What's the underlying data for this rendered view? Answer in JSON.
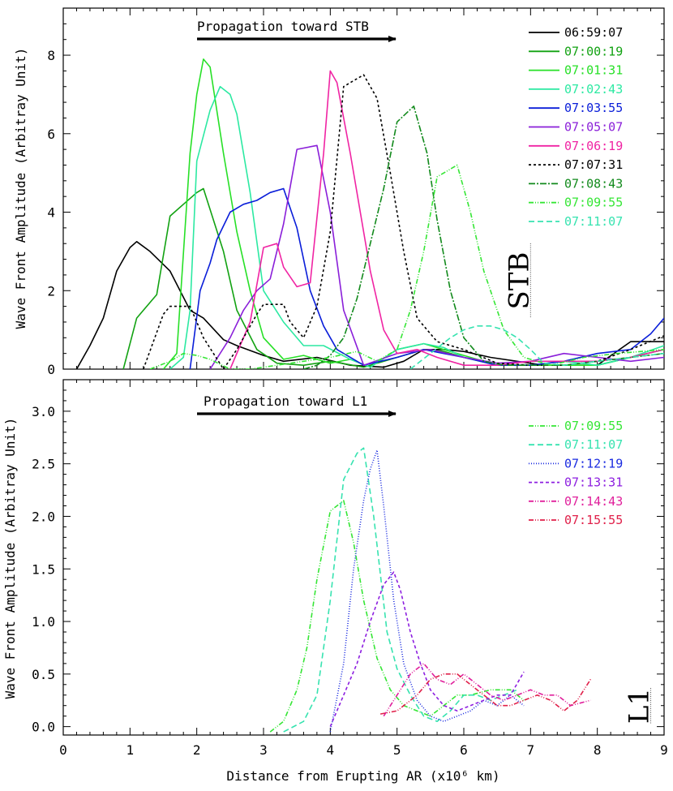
{
  "chart_data": [
    {
      "type": "line",
      "annotation": "Propagation toward STB",
      "marker_label": "STB",
      "marker_x": 7.0,
      "ylabel": "Wave Front Amplitude (Arbitray Unit)",
      "xlim": [
        0,
        9
      ],
      "ylim": [
        0,
        9.2
      ],
      "yticks": [
        0,
        2,
        4,
        6,
        8
      ],
      "yticklabels": [
        "0",
        "2",
        "4",
        "6",
        "8"
      ],
      "legend_position": "top-right",
      "series": [
        {
          "name": "06:59:07",
          "color": "#000000",
          "dash": "solid",
          "x": [
            0.2,
            0.4,
            0.6,
            0.8,
            1.0,
            1.1,
            1.3,
            1.6,
            1.9,
            2.1,
            2.4,
            2.6,
            3.0,
            3.3,
            3.8,
            4.3,
            4.8,
            5.1,
            5.4,
            5.7,
            6.0,
            6.4,
            7.2,
            8.0,
            8.5,
            9.0
          ],
          "y": [
            0.0,
            0.6,
            1.3,
            2.5,
            3.1,
            3.25,
            3.0,
            2.5,
            1.5,
            1.3,
            0.75,
            0.6,
            0.35,
            0.2,
            0.3,
            0.1,
            0.05,
            0.2,
            0.5,
            0.5,
            0.45,
            0.3,
            0.1,
            0.1,
            0.7,
            0.7
          ]
        },
        {
          "name": "07:00:19",
          "color": "#12a212",
          "dash": "solid",
          "x": [
            0.9,
            1.1,
            1.4,
            1.6,
            1.8,
            2.0,
            2.1,
            2.4,
            2.6,
            2.9,
            3.2,
            3.6,
            4.0,
            4.5,
            5.0,
            5.4,
            5.7,
            6.0,
            6.5,
            7.0,
            7.5,
            8.0,
            8.5,
            9.0
          ],
          "y": [
            0.0,
            1.3,
            1.9,
            3.9,
            4.2,
            4.5,
            4.6,
            3.0,
            1.5,
            0.5,
            0.15,
            0.1,
            0.2,
            0.05,
            0.3,
            0.5,
            0.45,
            0.3,
            0.1,
            0.1,
            0.1,
            0.1,
            0.3,
            0.5
          ]
        },
        {
          "name": "07:01:31",
          "color": "#27e027",
          "dash": "solid",
          "x": [
            1.5,
            1.7,
            1.9,
            2.0,
            2.1,
            2.2,
            2.4,
            2.6,
            2.8,
            3.0,
            3.3,
            3.6,
            4.0,
            4.3,
            4.6,
            5.0,
            5.4,
            5.7,
            6.0,
            6.5,
            7.0,
            7.5,
            8.0,
            8.5,
            9.0
          ],
          "y": [
            0.0,
            0.4,
            5.5,
            7.0,
            7.9,
            7.7,
            5.5,
            3.5,
            2.0,
            0.8,
            0.25,
            0.35,
            0.15,
            0.25,
            0.05,
            0.5,
            0.65,
            0.5,
            0.35,
            0.1,
            0.1,
            0.1,
            0.1,
            0.3,
            0.5
          ]
        },
        {
          "name": "07:02:43",
          "color": "#2ce9a2",
          "dash": "solid",
          "x": [
            1.6,
            1.8,
            1.9,
            2.0,
            2.2,
            2.35,
            2.5,
            2.6,
            2.8,
            3.0,
            3.3,
            3.6,
            3.9,
            4.3,
            4.6,
            5.0,
            5.4,
            5.7,
            6.0,
            6.5,
            7.0,
            7.5,
            8.0,
            8.5,
            9.0
          ],
          "y": [
            0.0,
            0.3,
            1.5,
            5.3,
            6.6,
            7.2,
            7.0,
            6.5,
            4.5,
            2.0,
            1.2,
            0.6,
            0.6,
            0.25,
            0.05,
            0.5,
            0.65,
            0.55,
            0.3,
            0.1,
            0.1,
            0.2,
            0.1,
            0.3,
            0.6
          ]
        },
        {
          "name": "07:03:55",
          "color": "#0a1ed9",
          "dash": "solid",
          "x": [
            1.9,
            2.05,
            2.2,
            2.3,
            2.5,
            2.7,
            2.9,
            3.1,
            3.3,
            3.5,
            3.7,
            3.9,
            4.1,
            4.5,
            5.0,
            5.4,
            5.7,
            6.0,
            6.5,
            7.0,
            7.5,
            8.0,
            8.5,
            8.8,
            9.0
          ],
          "y": [
            0.0,
            2.0,
            2.7,
            3.3,
            4.0,
            4.2,
            4.3,
            4.5,
            4.6,
            3.6,
            2.0,
            1.1,
            0.5,
            0.1,
            0.3,
            0.5,
            0.4,
            0.3,
            0.1,
            0.1,
            0.2,
            0.4,
            0.5,
            0.9,
            1.3
          ]
        },
        {
          "name": "07:05:07",
          "color": "#8a1fd9",
          "dash": "solid",
          "x": [
            2.2,
            2.5,
            2.7,
            2.9,
            3.1,
            3.3,
            3.5,
            3.8,
            4.0,
            4.2,
            4.5,
            5.0,
            5.5,
            6.0,
            6.5,
            7.0,
            7.5,
            8.0,
            8.5,
            9.0
          ],
          "y": [
            0.0,
            0.8,
            1.5,
            2.0,
            2.3,
            3.7,
            5.6,
            5.7,
            4.0,
            1.5,
            0.1,
            0.4,
            0.5,
            0.3,
            0.15,
            0.2,
            0.4,
            0.3,
            0.2,
            0.3
          ]
        },
        {
          "name": "07:06:19",
          "color": "#f024a3",
          "dash": "solid",
          "x": [
            2.5,
            2.8,
            3.0,
            3.2,
            3.3,
            3.5,
            3.7,
            3.9,
            4.0,
            4.1,
            4.3,
            4.6,
            4.8,
            5.0,
            5.3,
            5.6,
            6.0,
            6.5,
            7.0,
            7.5,
            8.0,
            8.5,
            9.0
          ],
          "y": [
            0.0,
            1.2,
            3.1,
            3.2,
            2.6,
            2.1,
            2.2,
            5.5,
            7.6,
            7.3,
            5.5,
            2.5,
            1.0,
            0.4,
            0.5,
            0.3,
            0.1,
            0.1,
            0.2,
            0.2,
            0.2,
            0.3,
            0.5
          ]
        },
        {
          "name": "07:07:31",
          "color": "#000000",
          "dash": "3,3",
          "x": [
            1.2,
            1.5,
            1.6,
            1.9,
            2.1,
            2.4,
            2.6,
            2.9,
            3.0,
            3.3,
            3.4,
            3.6,
            3.8,
            4.0,
            4.2,
            4.5,
            4.7,
            4.9,
            5.1,
            5.3,
            5.6,
            6.0,
            6.5,
            7.0,
            7.5,
            8.0,
            8.5,
            9.0
          ],
          "y": [
            0.0,
            1.4,
            1.6,
            1.6,
            0.8,
            0.0,
            0.5,
            1.4,
            1.65,
            1.65,
            1.2,
            0.8,
            1.6,
            3.5,
            7.2,
            7.5,
            6.9,
            5.0,
            3.0,
            1.3,
            0.7,
            0.5,
            0.15,
            0.1,
            0.1,
            0.2,
            0.5,
            0.85
          ]
        },
        {
          "name": "07:08:43",
          "color": "#128a1c",
          "dash": "8,2,2,2",
          "x": [
            3.6,
            3.8,
            4.0,
            4.2,
            4.4,
            4.6,
            4.8,
            5.0,
            5.25,
            5.45,
            5.6,
            5.8,
            6.0,
            6.3,
            6.6,
            7.0,
            7.5,
            8.0,
            8.5,
            9.0
          ],
          "y": [
            0.0,
            0.1,
            0.35,
            0.8,
            1.8,
            3.2,
            4.6,
            6.3,
            6.7,
            5.5,
            3.8,
            2.0,
            0.8,
            0.2,
            0.1,
            0.1,
            0.1,
            0.2,
            0.3,
            0.4
          ]
        },
        {
          "name": "07:09:55",
          "color": "#35e635",
          "dash": "6,2,1,2,1,2",
          "x": [
            1.3,
            1.6,
            1.8,
            2.0,
            2.2,
            2.5,
            2.8,
            3.2,
            3.6,
            4.0,
            4.4,
            4.7,
            5.0,
            5.2,
            5.4,
            5.6,
            5.9,
            6.1,
            6.3,
            6.6,
            6.9,
            7.3,
            7.8,
            8.3,
            9.0
          ],
          "y": [
            0.0,
            0.2,
            0.4,
            0.35,
            0.25,
            0.0,
            0.0,
            0.1,
            0.2,
            0.3,
            0.45,
            0.2,
            0.5,
            1.5,
            3.0,
            4.9,
            5.2,
            4.0,
            2.5,
            1.0,
            0.3,
            0.1,
            0.3,
            0.4,
            0.5
          ]
        },
        {
          "name": "07:11:07",
          "color": "#37e3b0",
          "dash": "7,4",
          "x": [
            5.2,
            5.5,
            5.8,
            6.0,
            6.2,
            6.4,
            6.6,
            6.8,
            7.0,
            7.2,
            7.5,
            8.0,
            8.5,
            9.0
          ],
          "y": [
            0.0,
            0.4,
            0.8,
            1.0,
            1.1,
            1.1,
            1.0,
            0.8,
            0.5,
            0.15,
            0.1,
            0.2,
            0.3,
            0.4
          ]
        }
      ]
    },
    {
      "type": "line",
      "annotation": "Propagation toward L1",
      "marker_label": "L1",
      "marker_x": 8.8,
      "xlabel": "Distance from Erupting AR (x10⁶ km)",
      "ylabel": "Wave Front Amplitude (Arbitray Unit)",
      "xlim": [
        0,
        9
      ],
      "xticks": [
        0,
        1,
        2,
        3,
        4,
        5,
        6,
        7,
        8,
        9
      ],
      "xticklabels": [
        "0",
        "1",
        "2",
        "3",
        "4",
        "5",
        "6",
        "7",
        "8",
        "9"
      ],
      "ylim": [
        -0.08,
        3.3
      ],
      "yticks": [
        0.0,
        0.5,
        1.0,
        1.5,
        2.0,
        2.5,
        3.0
      ],
      "yticklabels": [
        "0.0",
        "0.5",
        "1.0",
        "1.5",
        "2.0",
        "2.5",
        "3.0"
      ],
      "legend_position": "top-right",
      "series": [
        {
          "name": "07:09:55",
          "color": "#35e635",
          "dash": "6,2,1,2,1,2",
          "x": [
            3.1,
            3.3,
            3.5,
            3.65,
            3.8,
            4.0,
            4.2,
            4.35,
            4.5,
            4.7,
            4.9,
            5.1,
            5.3,
            5.5,
            5.7,
            5.9,
            6.1,
            6.4,
            6.7,
            6.9
          ],
          "y": [
            -0.05,
            0.05,
            0.35,
            0.75,
            1.4,
            2.05,
            2.15,
            1.75,
            1.2,
            0.65,
            0.35,
            0.2,
            0.15,
            0.1,
            0.2,
            0.3,
            0.3,
            0.35,
            0.35,
            0.25
          ]
        },
        {
          "name": "07:11:07",
          "color": "#37e3b0",
          "dash": "7,4",
          "x": [
            3.3,
            3.6,
            3.8,
            4.0,
            4.2,
            4.4,
            4.5,
            4.65,
            4.85,
            5.0,
            5.2,
            5.4,
            5.6,
            5.8,
            6.0,
            6.2,
            6.4,
            6.6,
            6.8
          ],
          "y": [
            -0.05,
            0.05,
            0.3,
            1.2,
            2.35,
            2.6,
            2.65,
            2.0,
            0.9,
            0.55,
            0.3,
            0.1,
            0.05,
            0.15,
            0.3,
            0.3,
            0.25,
            0.3,
            0.35
          ]
        },
        {
          "name": "07:12:19",
          "color": "#1a2be0",
          "dash": "1,2",
          "x": [
            4.0,
            4.2,
            4.35,
            4.5,
            4.6,
            4.7,
            4.8,
            4.95,
            5.1,
            5.3,
            5.5,
            5.7,
            5.9,
            6.1,
            6.3,
            6.5,
            6.7,
            6.9
          ],
          "y": [
            -0.05,
            0.6,
            1.5,
            2.15,
            2.45,
            2.63,
            2.1,
            1.2,
            0.6,
            0.25,
            0.1,
            0.05,
            0.1,
            0.15,
            0.25,
            0.2,
            0.3,
            0.2
          ]
        },
        {
          "name": "07:13:31",
          "color": "#8d1fe0",
          "dash": "4,3",
          "x": [
            4.0,
            4.2,
            4.4,
            4.6,
            4.8,
            4.95,
            5.05,
            5.2,
            5.35,
            5.5,
            5.7,
            5.9,
            6.1,
            6.3,
            6.5,
            6.7,
            6.9
          ],
          "y": [
            0.0,
            0.3,
            0.6,
            1.0,
            1.35,
            1.47,
            1.3,
            0.9,
            0.6,
            0.35,
            0.2,
            0.15,
            0.2,
            0.25,
            0.3,
            0.3,
            0.52
          ]
        },
        {
          "name": "07:14:43",
          "color": "#e0209c",
          "dash": "6,2,1,2,1,2",
          "x": [
            4.8,
            5.0,
            5.2,
            5.4,
            5.6,
            5.8,
            6.0,
            6.2,
            6.4,
            6.6,
            6.8,
            7.0,
            7.2,
            7.4,
            7.6,
            7.9
          ],
          "y": [
            0.1,
            0.3,
            0.5,
            0.6,
            0.45,
            0.4,
            0.5,
            0.4,
            0.3,
            0.25,
            0.3,
            0.35,
            0.3,
            0.3,
            0.2,
            0.25
          ]
        },
        {
          "name": "07:15:55",
          "color": "#e0204a",
          "dash": "6,2,1,2,1,2",
          "x": [
            4.75,
            5.0,
            5.3,
            5.5,
            5.7,
            5.9,
            6.1,
            6.3,
            6.5,
            6.7,
            6.9,
            7.1,
            7.3,
            7.5,
            7.7,
            7.9
          ],
          "y": [
            0.12,
            0.15,
            0.3,
            0.45,
            0.5,
            0.5,
            0.4,
            0.3,
            0.2,
            0.2,
            0.25,
            0.3,
            0.25,
            0.15,
            0.25,
            0.45
          ]
        }
      ]
    }
  ]
}
